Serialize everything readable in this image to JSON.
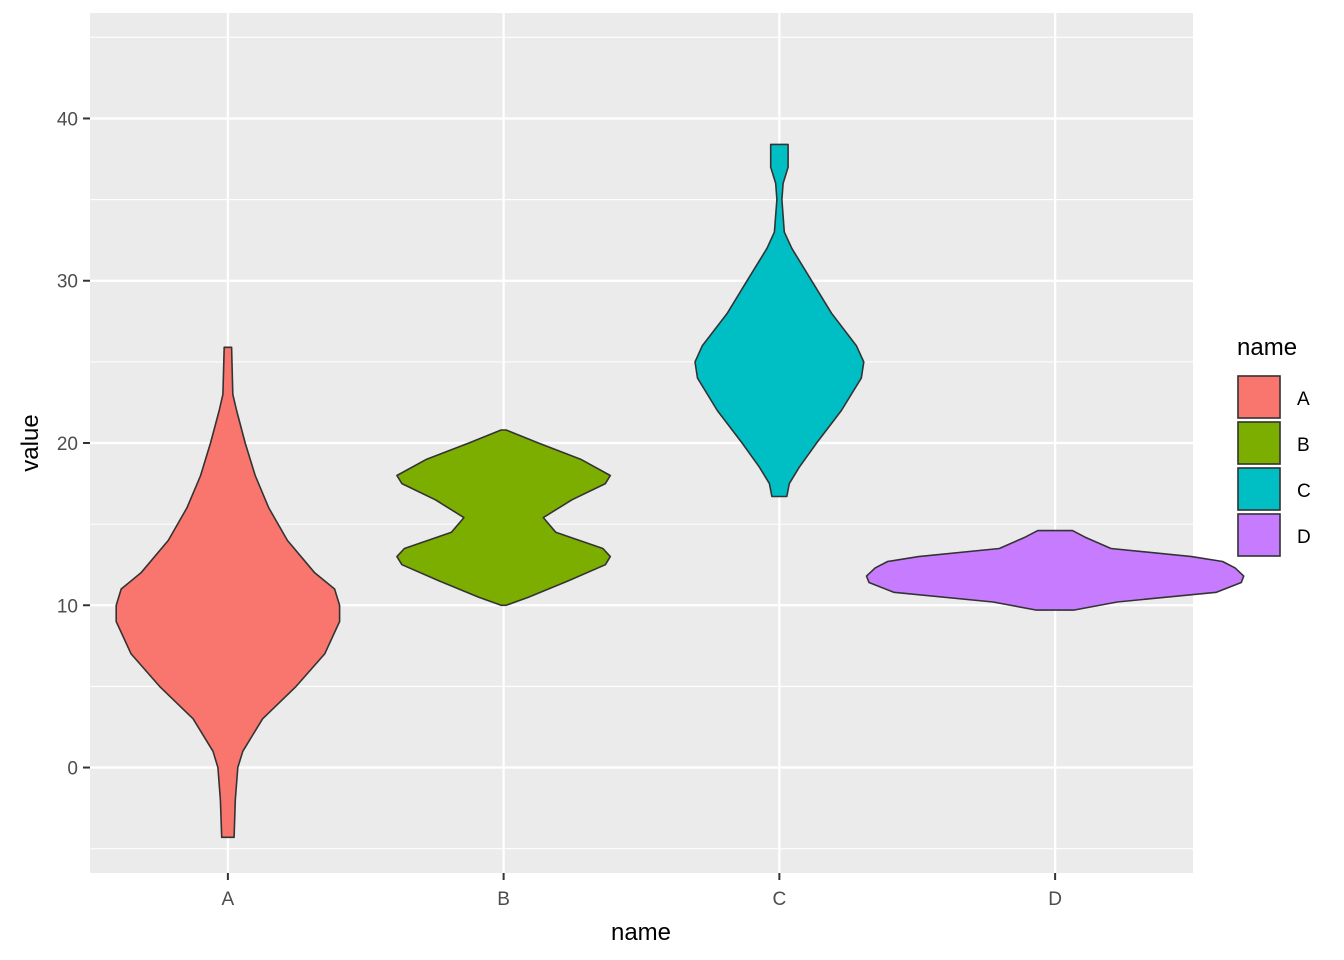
{
  "chart_data": {
    "type": "violin",
    "xlabel": "name",
    "ylabel": "value",
    "categories": [
      "A",
      "B",
      "C",
      "D"
    ],
    "ylim": [
      -6.5,
      46.5
    ],
    "yticks": [
      0,
      10,
      20,
      30,
      40
    ],
    "grid": true,
    "legend": {
      "title": "name",
      "placement": "right",
      "entries": [
        "A",
        "B",
        "C",
        "D"
      ]
    },
    "series": [
      {
        "category": "A",
        "color": "#F8766D",
        "min": -4.3,
        "max": 25.9,
        "profile": [
          [
            -4.3,
            0.05
          ],
          [
            -2,
            0.06
          ],
          [
            0,
            0.08
          ],
          [
            1,
            0.12
          ],
          [
            3,
            0.28
          ],
          [
            5,
            0.55
          ],
          [
            7,
            0.78
          ],
          [
            9,
            0.9
          ],
          [
            10,
            0.9
          ],
          [
            11,
            0.86
          ],
          [
            12,
            0.7
          ],
          [
            14,
            0.48
          ],
          [
            16,
            0.33
          ],
          [
            18,
            0.22
          ],
          [
            20,
            0.14
          ],
          [
            22,
            0.07
          ],
          [
            23,
            0.04
          ],
          [
            25.9,
            0.03
          ]
        ]
      },
      {
        "category": "B",
        "color": "#7CAE00",
        "min": 10.0,
        "max": 20.8,
        "profile": [
          [
            10.0,
            0.02
          ],
          [
            10.5,
            0.2
          ],
          [
            11.5,
            0.52
          ],
          [
            12.5,
            0.82
          ],
          [
            13.0,
            0.86
          ],
          [
            13.5,
            0.8
          ],
          [
            14.5,
            0.42
          ],
          [
            15.4,
            0.32
          ],
          [
            16.5,
            0.55
          ],
          [
            17.5,
            0.82
          ],
          [
            18.0,
            0.86
          ],
          [
            19.0,
            0.62
          ],
          [
            20.0,
            0.28
          ],
          [
            20.8,
            0.02
          ]
        ]
      },
      {
        "category": "C",
        "color": "#00BFC4",
        "min": 16.7,
        "max": 38.4,
        "profile": [
          [
            16.7,
            0.06
          ],
          [
            17.5,
            0.08
          ],
          [
            18.5,
            0.16
          ],
          [
            20,
            0.3
          ],
          [
            22,
            0.5
          ],
          [
            24,
            0.66
          ],
          [
            25,
            0.68
          ],
          [
            26,
            0.62
          ],
          [
            28,
            0.42
          ],
          [
            30,
            0.26
          ],
          [
            32,
            0.1
          ],
          [
            33,
            0.04
          ],
          [
            35,
            0.02
          ],
          [
            36,
            0.03
          ],
          [
            37,
            0.07
          ],
          [
            38.4,
            0.07
          ]
        ]
      },
      {
        "category": "D",
        "color": "#C77CFF",
        "min": 9.7,
        "max": 14.6,
        "profile": [
          [
            9.7,
            0.15
          ],
          [
            10.2,
            0.5
          ],
          [
            10.8,
            1.3
          ],
          [
            11.4,
            1.5
          ],
          [
            11.8,
            1.52
          ],
          [
            12.3,
            1.45
          ],
          [
            12.7,
            1.35
          ],
          [
            13.0,
            1.1
          ],
          [
            13.5,
            0.45
          ],
          [
            14.2,
            0.24
          ],
          [
            14.6,
            0.14
          ]
        ]
      }
    ]
  }
}
